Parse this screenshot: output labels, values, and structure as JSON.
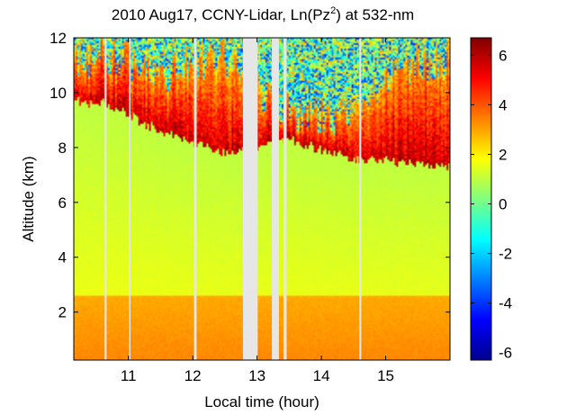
{
  "chart_data": {
    "type": "heatmap",
    "title": "2010 Aug17, CCNY-Lidar, Ln(Pz2) at 532-nm",
    "title_parts": {
      "prefix": "2010 Aug17, CCNY-Lidar, Ln(Pz",
      "superscript": "2",
      "suffix": ") at 532-nm"
    },
    "xlabel": "Local time (hour)",
    "ylabel": "Altitude (km)",
    "xlim": [
      10.15,
      16.0
    ],
    "ylim": [
      0.25,
      12.0
    ],
    "x_ticks": [
      11,
      12,
      13,
      14,
      15
    ],
    "x_tick_labels": [
      "11",
      "12",
      "13",
      "14",
      "15"
    ],
    "y_ticks": [
      2,
      4,
      6,
      8,
      10,
      12
    ],
    "y_tick_labels": [
      "2",
      "4",
      "6",
      "8",
      "10",
      "12"
    ],
    "colorbar": {
      "range": [
        -6.3,
        6.7
      ],
      "ticks": [
        -6,
        -4,
        -2,
        0,
        2,
        4,
        6
      ],
      "tick_labels": [
        "-6",
        "-4",
        "-2",
        "0",
        "2",
        "4",
        "6"
      ],
      "colormap": "jet"
    },
    "data_gaps_hours": [
      [
        10.63,
        10.66
      ],
      [
        11.01,
        11.03
      ],
      [
        12.02,
        12.06
      ],
      [
        12.78,
        13.01
      ],
      [
        13.23,
        13.34
      ],
      [
        13.41,
        13.46
      ],
      [
        14.59,
        14.62
      ]
    ],
    "description_features": {
      "boundary_layer_top_km": 2.6,
      "cloud_base_km": [
        [
          10.15,
          9.7
        ],
        [
          10.6,
          9.6
        ],
        [
          11.0,
          9.2
        ],
        [
          11.5,
          8.6
        ],
        [
          12.0,
          8.2
        ],
        [
          12.5,
          7.8
        ],
        [
          13.0,
          8.0
        ],
        [
          13.5,
          8.3
        ],
        [
          14.0,
          7.9
        ],
        [
          14.5,
          7.6
        ],
        [
          15.0,
          7.5
        ],
        [
          15.5,
          7.4
        ],
        [
          16.0,
          7.3
        ]
      ],
      "cloud_top_km": [
        [
          10.15,
          12.0
        ],
        [
          10.6,
          12.0
        ],
        [
          11.0,
          12.0
        ],
        [
          11.5,
          11.5
        ],
        [
          12.0,
          12.0
        ],
        [
          12.5,
          12.0
        ],
        [
          13.0,
          11.0
        ],
        [
          13.5,
          10.0
        ],
        [
          14.0,
          9.8
        ],
        [
          14.5,
          10.2
        ],
        [
          15.0,
          11.0
        ],
        [
          15.5,
          12.0
        ],
        [
          16.0,
          12.0
        ]
      ]
    }
  }
}
